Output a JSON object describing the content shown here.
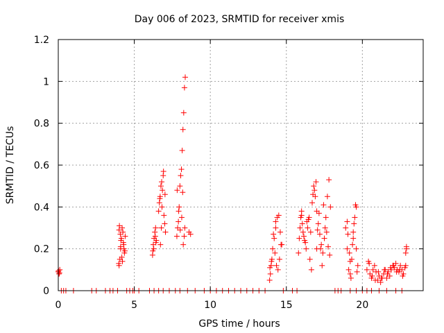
{
  "chart_data": {
    "type": "scatter",
    "title": "Day 006 of 2023, SRMTID for receiver xmis",
    "xlabel": "GPS time / hours",
    "ylabel": "SRMTID / TECUs",
    "xlim": [
      0,
      24
    ],
    "ylim": [
      0,
      1.2
    ],
    "x_ticks": [
      "0",
      "5",
      "10",
      "15",
      "20"
    ],
    "y_ticks": [
      "0",
      "0.2",
      "0.4",
      "0.6",
      "0.8",
      "1",
      "1.2"
    ],
    "grid": true,
    "marker": "+",
    "color": "#ff0000",
    "series": [
      {
        "name": "SRMTID",
        "x": [
          0.0,
          0.05,
          0.1,
          0.02,
          0.08,
          0.2,
          0.35,
          0.5,
          1.0,
          2.2,
          2.5,
          3.1,
          3.4,
          3.6,
          3.9,
          4.5,
          4.7,
          4.9,
          5.0,
          5.3,
          6.0,
          6.3,
          6.6,
          6.9,
          7.3,
          7.7,
          8.0,
          8.5,
          9.0,
          9.6,
          10.0,
          10.4,
          10.8,
          11.2,
          11.6,
          12.0,
          12.4,
          12.8,
          13.2,
          13.6,
          14.8,
          15.4,
          15.7,
          18.2,
          18.4,
          18.6,
          19.2,
          19.6,
          20.0,
          20.3,
          20.6,
          21.1,
          21.6,
          22.2,
          22.6,
          4.0,
          4.05,
          4.1,
          4.15,
          4.2,
          4.25,
          4.3,
          4.35,
          4.4,
          4.02,
          4.12,
          4.22,
          4.32,
          4.08,
          4.18,
          4.28,
          4.38,
          3.98,
          4.0,
          4.1,
          6.2,
          6.25,
          6.3,
          6.35,
          6.4,
          6.45,
          6.28,
          6.38,
          6.22,
          6.42,
          6.6,
          6.65,
          6.7,
          6.75,
          6.8,
          6.85,
          6.9,
          6.95,
          7.0,
          7.05,
          6.72,
          6.82,
          6.92,
          7.02,
          6.68,
          6.78,
          7.8,
          7.85,
          7.9,
          7.95,
          8.0,
          8.05,
          8.1,
          8.15,
          8.2,
          8.25,
          8.3,
          8.35,
          7.82,
          7.92,
          8.02,
          8.12,
          8.18,
          8.22,
          8.28,
          8.32,
          8.6,
          8.7,
          13.9,
          13.95,
          14.0,
          14.05,
          13.92,
          14.02,
          14.1,
          14.2,
          14.3,
          14.4,
          14.5,
          14.6,
          14.7,
          14.25,
          14.35,
          14.45,
          14.55,
          14.65,
          14.15,
          14.3,
          15.8,
          15.85,
          15.9,
          15.95,
          16.0,
          16.05,
          16.1,
          16.2,
          16.3,
          16.4,
          16.5,
          16.6,
          16.7,
          16.8,
          16.9,
          17.0,
          17.1,
          17.2,
          17.3,
          17.4,
          17.5,
          17.6,
          17.7,
          17.8,
          17.9,
          16.15,
          16.35,
          16.55,
          16.75,
          16.95,
          17.15,
          17.35,
          17.55,
          17.75,
          16.25,
          16.45,
          16.65,
          16.85,
          17.05,
          17.25,
          17.45,
          17.65,
          17.85,
          16.0,
          17.0,
          18.9,
          19.0,
          19.1,
          19.2,
          19.3,
          19.4,
          19.5,
          19.6,
          19.7,
          19.05,
          19.15,
          19.25,
          19.35,
          19.45,
          19.55,
          19.65,
          19.0,
          19.2,
          19.4,
          19.6,
          20.3,
          20.4,
          20.5,
          20.6,
          20.7,
          20.8,
          20.9,
          21.0,
          21.1,
          21.2,
          21.3,
          21.4,
          21.5,
          21.6,
          21.7,
          21.8,
          21.9,
          22.0,
          22.1,
          22.2,
          22.3,
          22.4,
          22.5,
          22.6,
          22.7,
          22.8,
          22.9,
          20.45,
          20.65,
          20.85,
          21.05,
          21.25,
          21.45,
          21.65,
          21.85,
          22.05,
          22.25,
          22.45,
          22.65,
          22.85,
          22.85,
          22.9
        ],
        "y": [
          0.09,
          0.08,
          0.1,
          0.095,
          0.085,
          0.0,
          0.0,
          0.0,
          0.0,
          0.0,
          0.0,
          0.0,
          0.0,
          0.0,
          0.0,
          0.0,
          0.0,
          0.0,
          0.0,
          0.0,
          0.0,
          0.0,
          0.0,
          0.0,
          0.0,
          0.0,
          0.0,
          0.0,
          0.0,
          0.0,
          0.0,
          0.0,
          0.0,
          0.0,
          0.0,
          0.0,
          0.0,
          0.0,
          0.0,
          0.0,
          0.0,
          0.0,
          0.0,
          0.0,
          0.0,
          0.0,
          0.0,
          0.0,
          0.0,
          0.0,
          0.0,
          0.0,
          0.0,
          0.0,
          0.0,
          0.12,
          0.15,
          0.2,
          0.25,
          0.3,
          0.28,
          0.22,
          0.18,
          0.26,
          0.31,
          0.24,
          0.14,
          0.2,
          0.27,
          0.16,
          0.23,
          0.19,
          0.13,
          0.29,
          0.21,
          0.17,
          0.22,
          0.25,
          0.28,
          0.3,
          0.24,
          0.2,
          0.26,
          0.19,
          0.23,
          0.38,
          0.42,
          0.45,
          0.5,
          0.52,
          0.48,
          0.55,
          0.36,
          0.32,
          0.28,
          0.22,
          0.4,
          0.57,
          0.46,
          0.44,
          0.3,
          0.26,
          0.3,
          0.33,
          0.4,
          0.5,
          0.55,
          0.58,
          0.67,
          0.77,
          0.85,
          0.97,
          1.02,
          0.48,
          0.38,
          0.29,
          0.35,
          0.47,
          0.22,
          0.26,
          0.3,
          0.28,
          0.27,
          0.05,
          0.08,
          0.12,
          0.15,
          0.11,
          0.14,
          0.2,
          0.25,
          0.3,
          0.35,
          0.36,
          0.28,
          0.22,
          0.18,
          0.12,
          0.1,
          0.15,
          0.22,
          0.27,
          0.33,
          0.18,
          0.25,
          0.3,
          0.35,
          0.38,
          0.32,
          0.28,
          0.24,
          0.2,
          0.3,
          0.35,
          0.28,
          0.42,
          0.5,
          0.45,
          0.38,
          0.32,
          0.27,
          0.22,
          0.18,
          0.25,
          0.35,
          0.45,
          0.53,
          0.4,
          0.26,
          0.33,
          0.15,
          0.46,
          0.52,
          0.37,
          0.12,
          0.3,
          0.21,
          0.23,
          0.34,
          0.1,
          0.48,
          0.29,
          0.2,
          0.41,
          0.28,
          0.17,
          0.36,
          0.2,
          0.3,
          0.2,
          0.1,
          0.08,
          0.15,
          0.25,
          0.35,
          0.4,
          0.12,
          0.27,
          0.18,
          0.06,
          0.22,
          0.32,
          0.41,
          0.09,
          0.33,
          0.14,
          0.28,
          0.2,
          0.1,
          0.14,
          0.08,
          0.06,
          0.1,
          0.12,
          0.09,
          0.05,
          0.07,
          0.04,
          0.06,
          0.08,
          0.1,
          0.06,
          0.09,
          0.07,
          0.1,
          0.12,
          0.11,
          0.13,
          0.1,
          0.09,
          0.12,
          0.1,
          0.08,
          0.11,
          0.2,
          0.13,
          0.07,
          0.05,
          0.09,
          0.06,
          0.1,
          0.08,
          0.11,
          0.12,
          0.09,
          0.1,
          0.07,
          0.12,
          0.18,
          0.21
        ]
      }
    ]
  }
}
